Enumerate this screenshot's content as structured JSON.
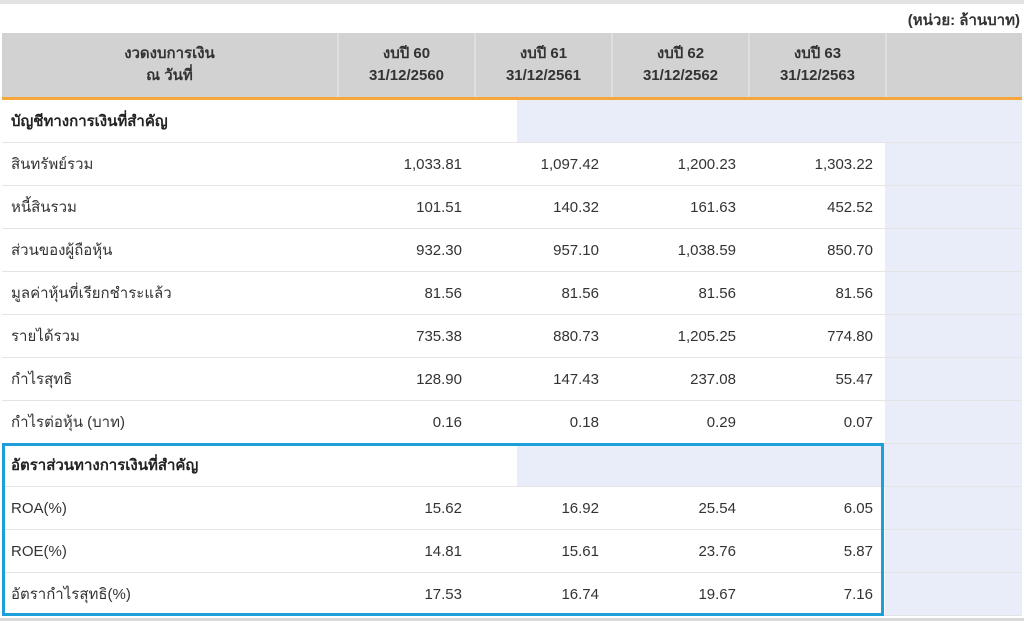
{
  "unit_label": "(หน่วย: ล้านบาท)",
  "table": {
    "header": {
      "period_line1": "งวดงบการเงิน",
      "period_line2": "ณ วันที่",
      "columns": [
        {
          "line1": "งบปี 60",
          "line2": "31/12/2560"
        },
        {
          "line1": "งบปี 61",
          "line2": "31/12/2561"
        },
        {
          "line1": "งบปี 62",
          "line2": "31/12/2562"
        },
        {
          "line1": "งบปี 63",
          "line2": "31/12/2563"
        }
      ]
    },
    "sections": [
      {
        "title": "บัญชีทางการเงินที่สำคัญ",
        "highlighted": false,
        "rows": [
          {
            "label": "สินทรัพย์รวม",
            "values": [
              "1,033.81",
              "1,097.42",
              "1,200.23",
              "1,303.22"
            ]
          },
          {
            "label": "หนี้สินรวม",
            "values": [
              "101.51",
              "140.32",
              "161.63",
              "452.52"
            ]
          },
          {
            "label": "ส่วนของผู้ถือหุ้น",
            "values": [
              "932.30",
              "957.10",
              "1,038.59",
              "850.70"
            ]
          },
          {
            "label": "มูลค่าหุ้นที่เรียกชำระแล้ว",
            "values": [
              "81.56",
              "81.56",
              "81.56",
              "81.56"
            ]
          },
          {
            "label": "รายได้รวม",
            "values": [
              "735.38",
              "880.73",
              "1,205.25",
              "774.80"
            ]
          },
          {
            "label": "กำไรสุทธิ",
            "values": [
              "128.90",
              "147.43",
              "237.08",
              "55.47"
            ]
          },
          {
            "label": "กำไรต่อหุ้น (บาท)",
            "values": [
              "0.16",
              "0.18",
              "0.29",
              "0.07"
            ]
          }
        ]
      },
      {
        "title": "อัตราส่วนทางการเงินที่สำคัญ",
        "highlighted": true,
        "rows": [
          {
            "label": "ROA(%)",
            "values": [
              "15.62",
              "16.92",
              "25.54",
              "6.05"
            ]
          },
          {
            "label": "ROE(%)",
            "values": [
              "14.81",
              "15.61",
              "23.76",
              "5.87"
            ]
          },
          {
            "label": "อัตรากำไรสุทธิ(%)",
            "values": [
              "17.53",
              "16.74",
              "19.67",
              "7.16"
            ]
          }
        ]
      }
    ]
  },
  "colors": {
    "header_bg": "#d2d2d2",
    "accent_orange": "#f6a63b",
    "highlight_blue": "#1d9fd9",
    "last_column_bg": "#e8edf9",
    "row_border": "#e4e4e4",
    "text": "#333333"
  }
}
